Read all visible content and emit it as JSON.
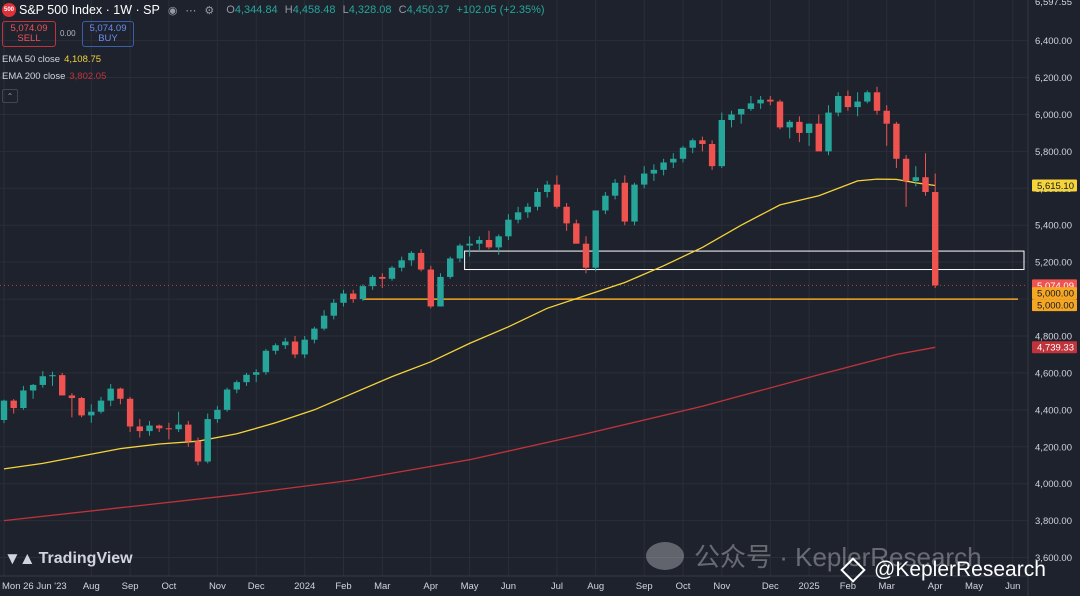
{
  "header": {
    "symbol_badge": "500",
    "title": "S&P 500 Index · 1W · SP",
    "ohlc": [
      {
        "k": "O",
        "v": "4,344.84"
      },
      {
        "k": "H",
        "v": "4,458.48"
      },
      {
        "k": "L",
        "v": "4,328.08"
      },
      {
        "k": "C",
        "v": "4,450.37"
      },
      {
        "k": "",
        "v": "+102.05 (+2.35%)"
      }
    ]
  },
  "trade": {
    "sell_price": "5,074.09",
    "sell_label": "SELL",
    "spread": "0.00",
    "buy_price": "5,074.09",
    "buy_label": "BUY"
  },
  "ema50": {
    "label": "EMA 50 close",
    "value": "4,108.75",
    "color": "#f5d33a"
  },
  "ema200": {
    "label": "EMA 200 close",
    "value": "3,802.05",
    "color": "#e0313a"
  },
  "watermark": {
    "tradingview": "TradingView",
    "wechat": "公众号 · KeplerResearch",
    "handle": "@KeplerResearch"
  },
  "colors": {
    "up": "#26a69a",
    "down": "#ef5350",
    "bg": "#1e222d",
    "axis_text": "#d1d4dc",
    "support": "#f5a623"
  },
  "chart_data": {
    "type": "candlestick",
    "ylim": [
      3500,
      6620
    ],
    "yticks": [
      3600,
      3800,
      4000,
      4200,
      4400,
      4600,
      4800,
      5000,
      5200,
      5400,
      5600,
      5800,
      6000,
      6200,
      6400
    ],
    "ytick_labels": [
      "3,600.00",
      "3,800.00",
      "4,000.00",
      "4,200.00",
      "4,400.00",
      "4,600.00",
      "4,800.00",
      "5,000.00",
      "5,200.00",
      "5,400.00",
      "5,600.00",
      "5,800.00",
      "6,000.00",
      "6,200.00",
      "6,400.00"
    ],
    "top_partial_label": "6,597.55",
    "x_labels": [
      {
        "i": 0,
        "label": "Mon 26 Jun '23"
      },
      {
        "i": 9,
        "label": "Aug"
      },
      {
        "i": 13,
        "label": "Sep"
      },
      {
        "i": 17,
        "label": "Oct"
      },
      {
        "i": 22,
        "label": "Nov"
      },
      {
        "i": 26,
        "label": "Dec"
      },
      {
        "i": 31,
        "label": "2024"
      },
      {
        "i": 35,
        "label": "Feb"
      },
      {
        "i": 39,
        "label": "Mar"
      },
      {
        "i": 44,
        "label": "Apr"
      },
      {
        "i": 48,
        "label": "May"
      },
      {
        "i": 52,
        "label": "Jun"
      },
      {
        "i": 57,
        "label": "Jul"
      },
      {
        "i": 61,
        "label": "Aug"
      },
      {
        "i": 66,
        "label": "Sep"
      },
      {
        "i": 70,
        "label": "Oct"
      },
      {
        "i": 74,
        "label": "Nov"
      },
      {
        "i": 79,
        "label": "Dec"
      },
      {
        "i": 83,
        "label": "2025"
      },
      {
        "i": 87,
        "label": "Feb"
      },
      {
        "i": 91,
        "label": "Mar"
      },
      {
        "i": 96,
        "label": "Apr"
      },
      {
        "i": 100,
        "label": "May"
      },
      {
        "i": 104,
        "label": "Jun"
      }
    ],
    "candles": [
      [
        4345,
        4455,
        4328,
        4450
      ],
      [
        4450,
        4458,
        4380,
        4410
      ],
      [
        4410,
        4530,
        4400,
        4505
      ],
      [
        4505,
        4540,
        4460,
        4535
      ],
      [
        4535,
        4610,
        4520,
        4582
      ],
      [
        4582,
        4607,
        4530,
        4588
      ],
      [
        4588,
        4600,
        4490,
        4478
      ],
      [
        4478,
        4490,
        4360,
        4464
      ],
      [
        4464,
        4470,
        4360,
        4370
      ],
      [
        4370,
        4430,
        4330,
        4390
      ],
      [
        4390,
        4470,
        4380,
        4450
      ],
      [
        4450,
        4540,
        4420,
        4515
      ],
      [
        4515,
        4520,
        4430,
        4460
      ],
      [
        4460,
        4470,
        4280,
        4310
      ],
      [
        4310,
        4350,
        4250,
        4285
      ],
      [
        4285,
        4340,
        4260,
        4315
      ],
      [
        4315,
        4320,
        4280,
        4300
      ],
      [
        4300,
        4330,
        4240,
        4295
      ],
      [
        4295,
        4390,
        4280,
        4320
      ],
      [
        4320,
        4340,
        4200,
        4230
      ],
      [
        4230,
        4250,
        4100,
        4120
      ],
      [
        4120,
        4380,
        4110,
        4350
      ],
      [
        4350,
        4420,
        4330,
        4400
      ],
      [
        4400,
        4520,
        4390,
        4510
      ],
      [
        4510,
        4560,
        4490,
        4550
      ],
      [
        4550,
        4600,
        4530,
        4590
      ],
      [
        4590,
        4620,
        4550,
        4604
      ],
      [
        4604,
        4730,
        4590,
        4720
      ],
      [
        4720,
        4760,
        4700,
        4750
      ],
      [
        4750,
        4790,
        4730,
        4770
      ],
      [
        4770,
        4800,
        4680,
        4700
      ],
      [
        4700,
        4800,
        4680,
        4780
      ],
      [
        4780,
        4850,
        4760,
        4840
      ],
      [
        4840,
        4940,
        4830,
        4910
      ],
      [
        4910,
        5000,
        4890,
        4980
      ],
      [
        4980,
        5050,
        4960,
        5030
      ],
      [
        5030,
        5050,
        4980,
        5000
      ],
      [
        5000,
        5080,
        4990,
        5070
      ],
      [
        5070,
        5130,
        5050,
        5120
      ],
      [
        5120,
        5140,
        5060,
        5110
      ],
      [
        5110,
        5180,
        5100,
        5170
      ],
      [
        5170,
        5230,
        5150,
        5210
      ],
      [
        5210,
        5260,
        5180,
        5250
      ],
      [
        5250,
        5270,
        5150,
        5160
      ],
      [
        5160,
        5180,
        4950,
        4960
      ],
      [
        4960,
        5140,
        4960,
        5120
      ],
      [
        5120,
        5230,
        5110,
        5220
      ],
      [
        5220,
        5300,
        5200,
        5290
      ],
      [
        5290,
        5340,
        5230,
        5300
      ],
      [
        5300,
        5340,
        5260,
        5320
      ],
      [
        5320,
        5370,
        5270,
        5280
      ],
      [
        5280,
        5350,
        5240,
        5340
      ],
      [
        5340,
        5460,
        5320,
        5430
      ],
      [
        5430,
        5500,
        5410,
        5470
      ],
      [
        5470,
        5520,
        5440,
        5500
      ],
      [
        5500,
        5600,
        5480,
        5580
      ],
      [
        5580,
        5640,
        5550,
        5620
      ],
      [
        5620,
        5670,
        5490,
        5500
      ],
      [
        5500,
        5520,
        5370,
        5410
      ],
      [
        5410,
        5430,
        5320,
        5300
      ],
      [
        5300,
        5340,
        5140,
        5170
      ],
      [
        5170,
        5460,
        5150,
        5480
      ],
      [
        5480,
        5580,
        5460,
        5560
      ],
      [
        5560,
        5650,
        5540,
        5630
      ],
      [
        5630,
        5670,
        5400,
        5420
      ],
      [
        5420,
        5630,
        5400,
        5620
      ],
      [
        5620,
        5720,
        5600,
        5680
      ],
      [
        5680,
        5730,
        5640,
        5700
      ],
      [
        5700,
        5760,
        5670,
        5740
      ],
      [
        5740,
        5790,
        5710,
        5760
      ],
      [
        5760,
        5830,
        5740,
        5820
      ],
      [
        5820,
        5870,
        5790,
        5860
      ],
      [
        5860,
        5880,
        5800,
        5840
      ],
      [
        5840,
        5860,
        5700,
        5720
      ],
      [
        5720,
        6010,
        5710,
        5970
      ],
      [
        5970,
        6020,
        5930,
        6000
      ],
      [
        6000,
        6030,
        5950,
        6030
      ],
      [
        6030,
        6100,
        6020,
        6060
      ],
      [
        6060,
        6100,
        6030,
        6080
      ],
      [
        6080,
        6100,
        6050,
        6070
      ],
      [
        6070,
        6080,
        5920,
        5930
      ],
      [
        5930,
        5970,
        5870,
        5960
      ],
      [
        5960,
        5990,
        5850,
        5900
      ],
      [
        5900,
        5950,
        5830,
        5950
      ],
      [
        5950,
        6000,
        5830,
        5800
      ],
      [
        5800,
        6050,
        5780,
        6010
      ],
      [
        6010,
        6120,
        5990,
        6100
      ],
      [
        6100,
        6130,
        6020,
        6040
      ],
      [
        6040,
        6120,
        5990,
        6070
      ],
      [
        6070,
        6130,
        6060,
        6120
      ],
      [
        6120,
        6150,
        6000,
        6020
      ],
      [
        6020,
        6050,
        5830,
        5950
      ],
      [
        5950,
        5960,
        5710,
        5760
      ],
      [
        5760,
        5780,
        5500,
        5640
      ],
      [
        5640,
        5720,
        5610,
        5660
      ],
      [
        5660,
        5790,
        5560,
        5580
      ],
      [
        5580,
        5680,
        5060,
        5074
      ]
    ],
    "ema50_points": [
      [
        0,
        4080
      ],
      [
        4,
        4110
      ],
      [
        8,
        4150
      ],
      [
        12,
        4190
      ],
      [
        16,
        4215
      ],
      [
        20,
        4230
      ],
      [
        24,
        4270
      ],
      [
        28,
        4330
      ],
      [
        32,
        4400
      ],
      [
        36,
        4490
      ],
      [
        40,
        4580
      ],
      [
        44,
        4660
      ],
      [
        48,
        4760
      ],
      [
        52,
        4850
      ],
      [
        56,
        4950
      ],
      [
        60,
        5020
      ],
      [
        64,
        5090
      ],
      [
        68,
        5180
      ],
      [
        72,
        5280
      ],
      [
        76,
        5400
      ],
      [
        80,
        5510
      ],
      [
        84,
        5560
      ],
      [
        88,
        5640
      ],
      [
        90,
        5650
      ],
      [
        92,
        5648
      ],
      [
        94,
        5630
      ],
      [
        96,
        5615
      ]
    ],
    "ema200_points": [
      [
        0,
        3800
      ],
      [
        12,
        3870
      ],
      [
        24,
        3940
      ],
      [
        36,
        4020
      ],
      [
        48,
        4130
      ],
      [
        60,
        4270
      ],
      [
        72,
        4420
      ],
      [
        84,
        4590
      ],
      [
        92,
        4700
      ],
      [
        96,
        4739
      ]
    ],
    "price_labels": [
      {
        "value": 5615.1,
        "text": "5,615.10",
        "bg": "#f5d33a",
        "fg": "#131722"
      },
      {
        "value": 5074.09,
        "text": "5,074.09",
        "bg": "#ef5350",
        "fg": "#ffffff"
      },
      {
        "value": 5000,
        "text": "5,000.00",
        "bg": "#f5a623",
        "fg": "#131722",
        "offset": -6
      },
      {
        "value": 5000,
        "text": "5,000.00",
        "bg": "#f5a623",
        "fg": "#131722",
        "offset": 6
      },
      {
        "value": 4739.33,
        "text": "4,739.33",
        "bg": "#c1333b",
        "fg": "#ffffff"
      }
    ],
    "support_zone": {
      "y_low": 5160,
      "y_high": 5260,
      "from_i": 48
    },
    "support_line": {
      "value": 5000,
      "from_i": 37
    }
  }
}
